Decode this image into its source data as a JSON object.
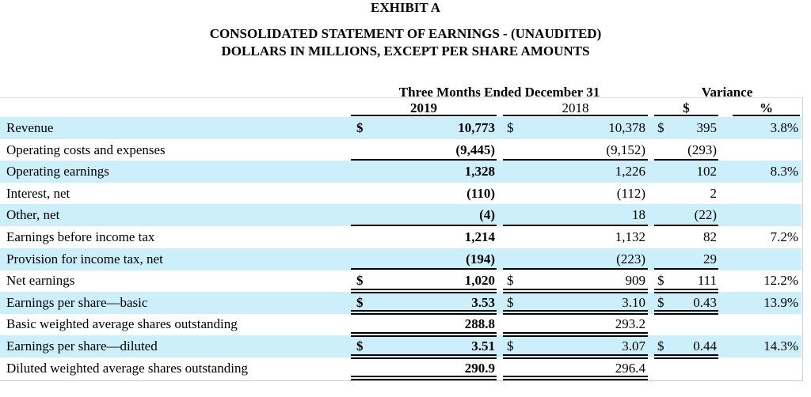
{
  "exhibit": "EXHIBIT A",
  "title": "CONSOLIDATED STATEMENT OF EARNINGS - (UNAUDITED)",
  "subtitle": "DOLLARS IN MILLIONS, EXCEPT PER SHARE AMOUNTS",
  "header": {
    "period": "Three Months Ended December 31",
    "variance": "Variance",
    "y2019": "2019",
    "y2018": "2018",
    "var_dollar": "$",
    "var_pct": "%"
  },
  "rows": [
    {
      "label": "Revenue",
      "c2019_sign": "$",
      "c2019": "10,773",
      "c2018_sign": "$",
      "c2018": "10,378",
      "var_sign": "$",
      "var": "395",
      "pct": "3.8%"
    },
    {
      "label": "Operating costs and expenses",
      "c2019": "(9,445)",
      "c2018": "(9,152)",
      "var": "(293)",
      "pct": ""
    },
    {
      "label": "Operating earnings",
      "c2019": "1,328",
      "c2018": "1,226",
      "var": "102",
      "pct": "8.3%"
    },
    {
      "label": "Interest, net",
      "c2019": "(110)",
      "c2018": "(112)",
      "var": "2",
      "pct": ""
    },
    {
      "label": "Other, net",
      "c2019": "(4)",
      "c2018": "18",
      "var": "(22)",
      "pct": ""
    },
    {
      "label": "Earnings before income tax",
      "c2019": "1,214",
      "c2018": "1,132",
      "var": "82",
      "pct": "7.2%"
    },
    {
      "label": "Provision for income tax, net",
      "c2019": "(194)",
      "c2018": "(223)",
      "var": "29",
      "pct": ""
    },
    {
      "label": "Net earnings",
      "c2019_sign": "$",
      "c2019": "1,020",
      "c2018_sign": "$",
      "c2018": "909",
      "var_sign": "$",
      "var": "111",
      "pct": "12.2%"
    },
    {
      "label": "Earnings per share—basic",
      "c2019_sign": "$",
      "c2019": "3.53",
      "c2018_sign": "$",
      "c2018": "3.10",
      "var_sign": "$",
      "var": "0.43",
      "pct": "13.9%"
    },
    {
      "label": "Basic weighted average shares outstanding",
      "c2019": "288.8",
      "c2018": "293.2",
      "var": "",
      "pct": ""
    },
    {
      "label": "Earnings per share—diluted",
      "c2019_sign": "$",
      "c2019": "3.51",
      "c2018_sign": "$",
      "c2018": "3.07",
      "var_sign": "$",
      "var": "0.44",
      "pct": "14.3%"
    },
    {
      "label": "Diluted weighted average shares outstanding",
      "c2019": "290.9",
      "c2018": "296.4",
      "var": "",
      "pct": ""
    }
  ],
  "colors": {
    "stripe": "#cdeefb"
  }
}
